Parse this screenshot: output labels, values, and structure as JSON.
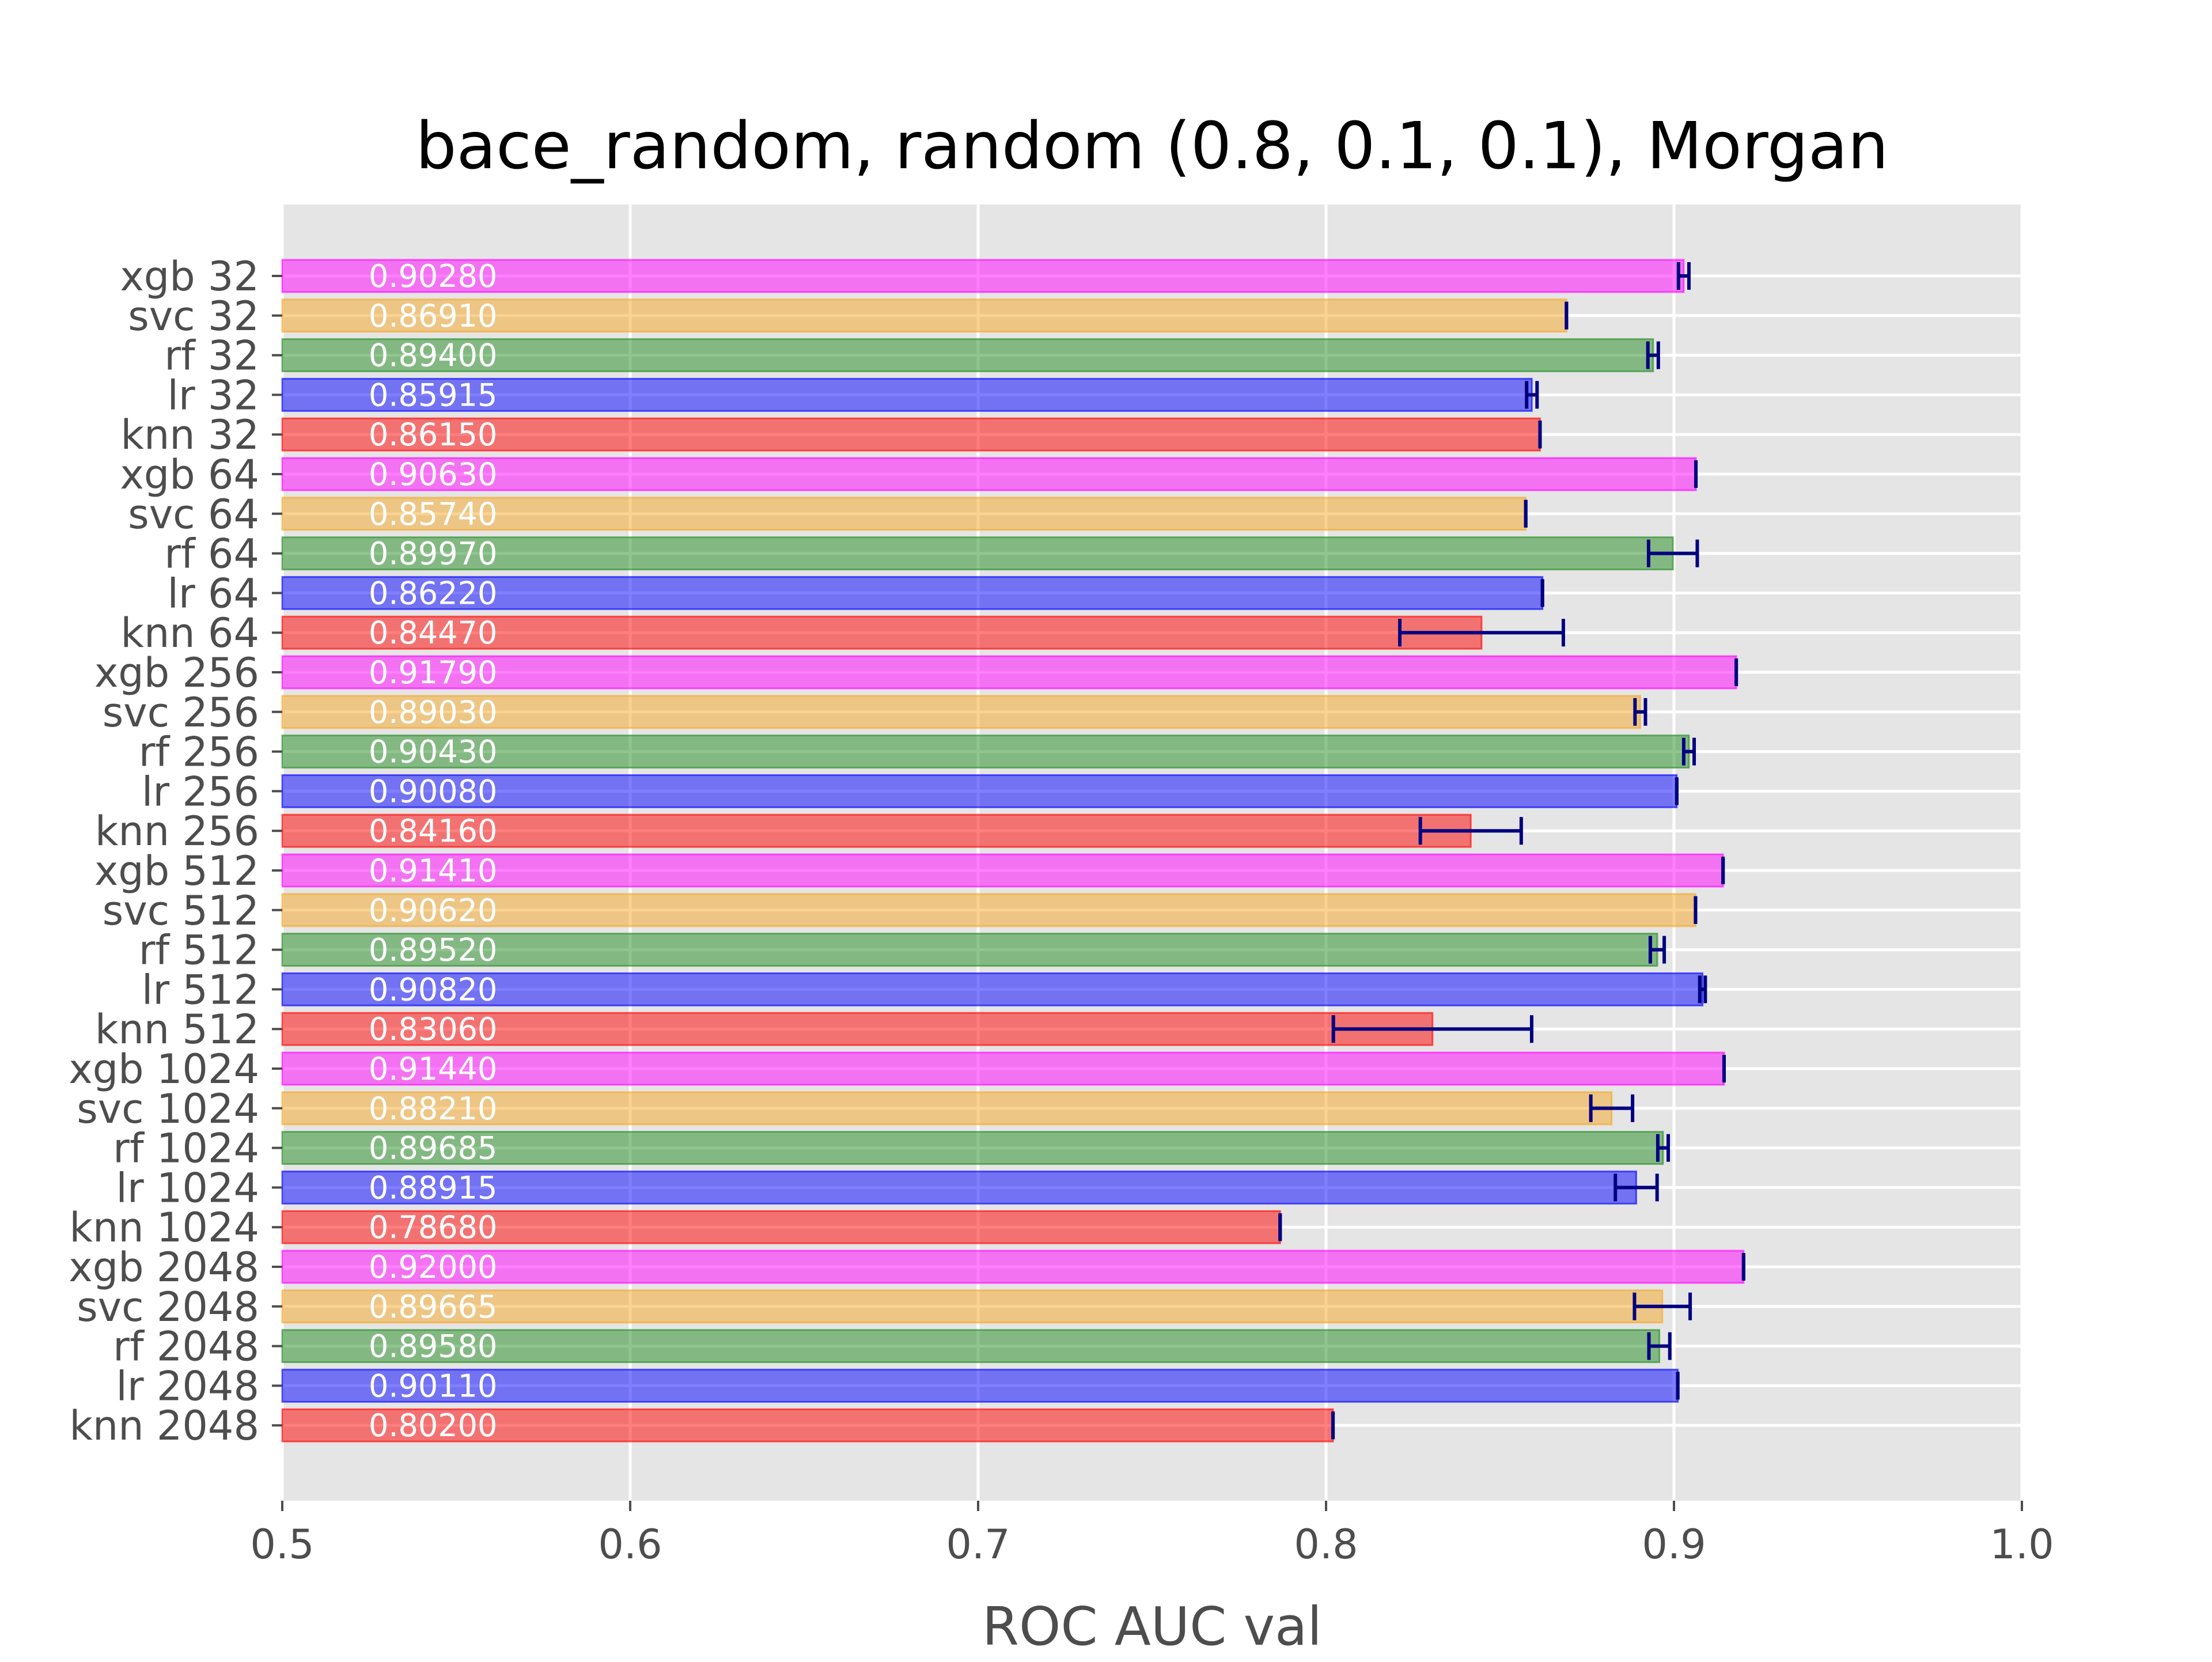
{
  "chart_data": {
    "type": "bar",
    "orientation": "horizontal",
    "title": "bace_random, random (0.8, 0.1, 0.1), Morgan",
    "xlabel": "ROC AUC val",
    "ylabel": "",
    "xlim": [
      0.5,
      1.0
    ],
    "xticks": [
      "0.5",
      "0.6",
      "0.7",
      "0.8",
      "0.9",
      "1.0"
    ],
    "grid": true,
    "background": "#e5e5e5",
    "colors": {
      "xgb": "#ff00ff",
      "svc": "#f5a623",
      "rf": "#228b22",
      "lr": "#0000ff",
      "knn": "#ff0000",
      "errorbar": "#000080"
    },
    "bars": [
      {
        "label": "xgb 32",
        "model": "xgb",
        "value": 0.9028,
        "err": 0.0015,
        "value_label": "0.90280"
      },
      {
        "label": "svc 32",
        "model": "svc",
        "value": 0.8691,
        "err": 0.0,
        "value_label": "0.86910"
      },
      {
        "label": "rf 32",
        "model": "rf",
        "value": 0.894,
        "err": 0.0015,
        "value_label": "0.89400"
      },
      {
        "label": "lr 32",
        "model": "lr",
        "value": 0.85915,
        "err": 0.0015,
        "value_label": "0.85915"
      },
      {
        "label": "knn 32",
        "model": "knn",
        "value": 0.8615,
        "err": 0.0,
        "value_label": "0.86150"
      },
      {
        "label": "xgb 64",
        "model": "xgb",
        "value": 0.9063,
        "err": 0.0,
        "value_label": "0.90630"
      },
      {
        "label": "svc 64",
        "model": "svc",
        "value": 0.8574,
        "err": 0.0,
        "value_label": "0.85740"
      },
      {
        "label": "rf 64",
        "model": "rf",
        "value": 0.8997,
        "err": 0.007,
        "value_label": "0.89970"
      },
      {
        "label": "lr 64",
        "model": "lr",
        "value": 0.8622,
        "err": 0.0,
        "value_label": "0.86220"
      },
      {
        "label": "knn 64",
        "model": "knn",
        "value": 0.8447,
        "err": 0.0235,
        "value_label": "0.84470"
      },
      {
        "label": "xgb 256",
        "model": "xgb",
        "value": 0.9179,
        "err": 0.0,
        "value_label": "0.91790"
      },
      {
        "label": "svc 256",
        "model": "svc",
        "value": 0.8903,
        "err": 0.0015,
        "value_label": "0.89030"
      },
      {
        "label": "rf 256",
        "model": "rf",
        "value": 0.9043,
        "err": 0.0015,
        "value_label": "0.90430"
      },
      {
        "label": "lr 256",
        "model": "lr",
        "value": 0.9008,
        "err": 0.0,
        "value_label": "0.90080"
      },
      {
        "label": "knn 256",
        "model": "knn",
        "value": 0.8416,
        "err": 0.0145,
        "value_label": "0.84160"
      },
      {
        "label": "xgb 512",
        "model": "xgb",
        "value": 0.9141,
        "err": 0.0,
        "value_label": "0.91410"
      },
      {
        "label": "svc 512",
        "model": "svc",
        "value": 0.9062,
        "err": 0.0,
        "value_label": "0.90620"
      },
      {
        "label": "rf 512",
        "model": "rf",
        "value": 0.8952,
        "err": 0.002,
        "value_label": "0.89520"
      },
      {
        "label": "lr 512",
        "model": "lr",
        "value": 0.9082,
        "err": 0.0008,
        "value_label": "0.90820"
      },
      {
        "label": "knn 512",
        "model": "knn",
        "value": 0.8306,
        "err": 0.0285,
        "value_label": "0.83060"
      },
      {
        "label": "xgb 1024",
        "model": "xgb",
        "value": 0.9144,
        "err": 0.0,
        "value_label": "0.91440"
      },
      {
        "label": "svc 1024",
        "model": "svc",
        "value": 0.8821,
        "err": 0.006,
        "value_label": "0.88210"
      },
      {
        "label": "rf 1024",
        "model": "rf",
        "value": 0.89685,
        "err": 0.0015,
        "value_label": "0.89685"
      },
      {
        "label": "lr 1024",
        "model": "lr",
        "value": 0.88915,
        "err": 0.006,
        "value_label": "0.88915"
      },
      {
        "label": "knn 1024",
        "model": "knn",
        "value": 0.7868,
        "err": 0.0,
        "value_label": "0.78680"
      },
      {
        "label": "xgb 2048",
        "model": "xgb",
        "value": 0.92,
        "err": 0.0,
        "value_label": "0.92000"
      },
      {
        "label": "svc 2048",
        "model": "svc",
        "value": 0.89665,
        "err": 0.008,
        "value_label": "0.89665"
      },
      {
        "label": "rf 2048",
        "model": "rf",
        "value": 0.8958,
        "err": 0.003,
        "value_label": "0.89580"
      },
      {
        "label": "lr 2048",
        "model": "lr",
        "value": 0.9011,
        "err": 0.0,
        "value_label": "0.90110"
      },
      {
        "label": "knn 2048",
        "model": "knn",
        "value": 0.802,
        "err": 0.0,
        "value_label": "0.80200"
      }
    ]
  }
}
